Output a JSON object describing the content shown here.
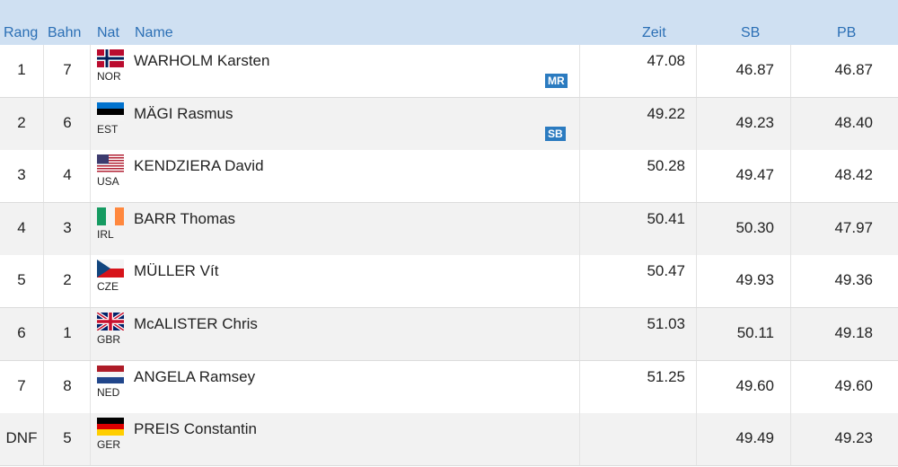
{
  "header": [
    "Rang",
    "Bahn",
    "Nat",
    "Name",
    "Zeit",
    "SB",
    "PB"
  ],
  "rows": [
    {
      "rank": "1",
      "lane": "7",
      "nat": "NOR",
      "name": "WARHOLM Karsten",
      "time": "47.08",
      "sb": "46.87",
      "pb": "46.87",
      "badge": "MR"
    },
    {
      "rank": "2",
      "lane": "6",
      "nat": "EST",
      "name": "MÄGI Rasmus",
      "time": "49.22",
      "sb": "49.23",
      "pb": "48.40",
      "badge": "SB"
    },
    {
      "rank": "3",
      "lane": "4",
      "nat": "USA",
      "name": "KENDZIERA David",
      "time": "50.28",
      "sb": "49.47",
      "pb": "48.42"
    },
    {
      "rank": "4",
      "lane": "3",
      "nat": "IRL",
      "name": "BARR Thomas",
      "time": "50.41",
      "sb": "50.30",
      "pb": "47.97"
    },
    {
      "rank": "5",
      "lane": "2",
      "nat": "CZE",
      "name": "MÜLLER Vít",
      "time": "50.47",
      "sb": "49.93",
      "pb": "49.36"
    },
    {
      "rank": "6",
      "lane": "1",
      "nat": "GBR",
      "name": "McALISTER Chris",
      "time": "51.03",
      "sb": "50.11",
      "pb": "49.18"
    },
    {
      "rank": "7",
      "lane": "8",
      "nat": "NED",
      "name": "ANGELA Ramsey",
      "time": "51.25",
      "sb": "49.60",
      "pb": "49.60"
    },
    {
      "rank": "DNF",
      "lane": "5",
      "nat": "GER",
      "name": "PREIS Constantin",
      "sb": "49.49",
      "pb": "49.23"
    }
  ]
}
